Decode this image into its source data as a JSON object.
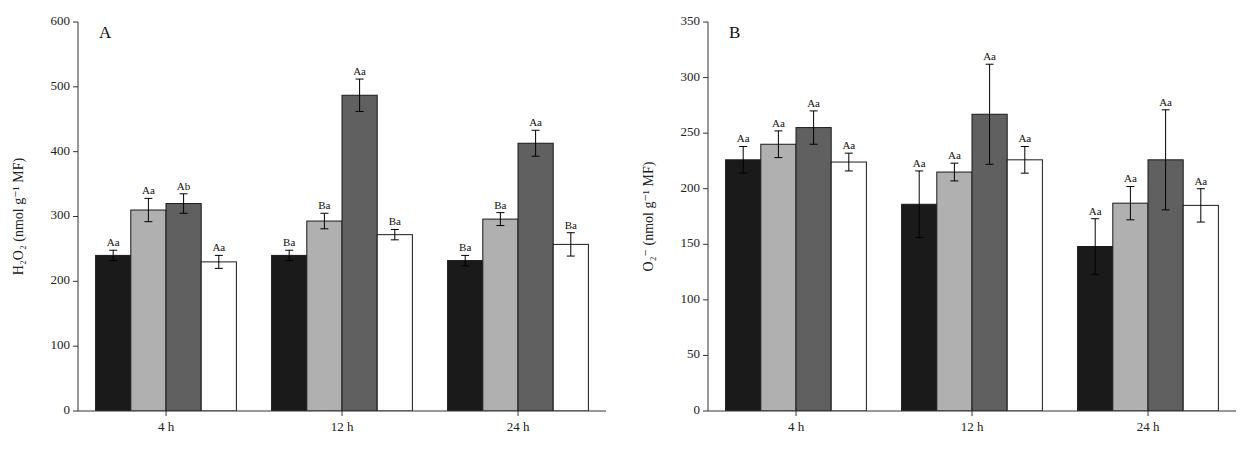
{
  "chart_data": [
    {
      "type": "bar",
      "title": "A",
      "ylabel": "H₂O₂ (nmol g⁻¹ MF)",
      "categories": [
        "4 h",
        "12 h",
        "24 h"
      ],
      "series": [
        {
          "color": "#1a1a1a",
          "values": [
            240,
            240,
            232
          ],
          "errors": [
            8,
            8,
            8
          ],
          "annotations": [
            "Aa",
            "Ba",
            "Ba"
          ]
        },
        {
          "color": "#b0b0b0",
          "values": [
            310,
            293,
            296
          ],
          "errors": [
            18,
            12,
            10
          ],
          "annotations": [
            "Aa",
            "Ba",
            "Ba"
          ]
        },
        {
          "color": "#606060",
          "values": [
            320,
            487,
            413
          ],
          "errors": [
            15,
            25,
            20
          ],
          "annotations": [
            "Ab",
            "Aa",
            "Aa"
          ]
        },
        {
          "color": "#ffffff",
          "values": [
            230,
            272,
            257
          ],
          "errors": [
            10,
            8,
            18
          ],
          "annotations": [
            "Aa",
            "Ba",
            "Ba"
          ]
        }
      ],
      "ylim": [
        0,
        600
      ],
      "yticks": [
        0,
        100,
        200,
        300,
        400,
        500,
        600
      ],
      "grid": false
    },
    {
      "type": "bar",
      "title": "B",
      "ylabel": "O₂⁻ (nmol g⁻¹ MF)",
      "categories": [
        "4 h",
        "12 h",
        "24 h"
      ],
      "series": [
        {
          "color": "#1a1a1a",
          "values": [
            226,
            186,
            148
          ],
          "errors": [
            12,
            30,
            25
          ],
          "annotations": [
            "Aa",
            "Aa",
            "Aa"
          ]
        },
        {
          "color": "#b0b0b0",
          "values": [
            240,
            215,
            187
          ],
          "errors": [
            12,
            8,
            15
          ],
          "annotations": [
            "Aa",
            "Aa",
            "Aa"
          ]
        },
        {
          "color": "#606060",
          "values": [
            255,
            267,
            226
          ],
          "errors": [
            15,
            45,
            45
          ],
          "annotations": [
            "Aa",
            "Aa",
            "Aa"
          ]
        },
        {
          "color": "#ffffff",
          "values": [
            224,
            226,
            185
          ],
          "errors": [
            8,
            12,
            15
          ],
          "annotations": [
            "Aa",
            "Aa",
            "Aa"
          ]
        }
      ],
      "ylim": [
        0,
        350
      ],
      "yticks": [
        0,
        50,
        100,
        150,
        200,
        250,
        300,
        350
      ],
      "grid": false
    }
  ]
}
